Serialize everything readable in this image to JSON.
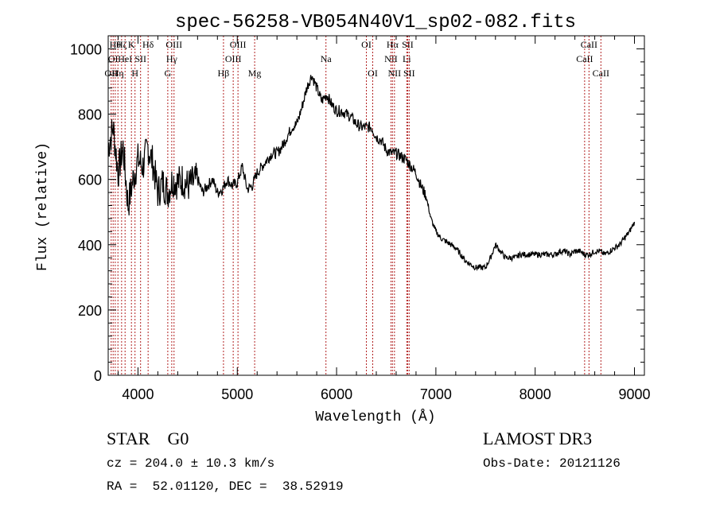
{
  "chart_data": {
    "type": "line",
    "title": "spec-56258-VB054N40V1_sp02-082.fits",
    "xlabel": "Wavelength (Å)",
    "ylabel": "Flux (relative)",
    "xlim": [
      3700,
      9100
    ],
    "ylim": [
      0,
      1040
    ],
    "xticks": [
      4000,
      5000,
      6000,
      7000,
      8000,
      9000
    ],
    "yticks": [
      0,
      200,
      400,
      600,
      800,
      1000
    ],
    "grid": false,
    "series": [
      {
        "name": "flux",
        "x": [
          3700,
          3750,
          3800,
          3850,
          3900,
          3950,
          4000,
          4050,
          4100,
          4150,
          4200,
          4250,
          4300,
          4350,
          4400,
          4450,
          4500,
          4550,
          4600,
          4650,
          4700,
          4750,
          4800,
          4850,
          4900,
          4950,
          5000,
          5050,
          5100,
          5150,
          5200,
          5250,
          5300,
          5350,
          5400,
          5450,
          5500,
          5550,
          5600,
          5650,
          5700,
          5750,
          5800,
          5850,
          5900,
          5950,
          6000,
          6050,
          6100,
          6150,
          6200,
          6250,
          6300,
          6350,
          6400,
          6450,
          6500,
          6550,
          6600,
          6650,
          6700,
          6750,
          6800,
          6850,
          6900,
          6950,
          7000,
          7050,
          7100,
          7150,
          7200,
          7250,
          7300,
          7350,
          7400,
          7450,
          7500,
          7550,
          7600,
          7650,
          7700,
          7750,
          7800,
          7850,
          7900,
          7950,
          8000,
          8050,
          8100,
          8150,
          8200,
          8250,
          8300,
          8350,
          8400,
          8450,
          8500,
          8550,
          8600,
          8650,
          8700,
          8750,
          8800,
          8850,
          8900,
          8950,
          9000
        ],
        "y": [
          700,
          760,
          620,
          700,
          520,
          600,
          660,
          640,
          700,
          650,
          560,
          590,
          560,
          600,
          590,
          600,
          580,
          590,
          600,
          560,
          580,
          600,
          560,
          570,
          600,
          580,
          590,
          640,
          570,
          580,
          620,
          640,
          660,
          680,
          680,
          700,
          730,
          760,
          770,
          820,
          880,
          920,
          880,
          840,
          860,
          830,
          810,
          810,
          800,
          790,
          770,
          760,
          760,
          760,
          730,
          720,
          690,
          680,
          680,
          670,
          660,
          640,
          620,
          580,
          550,
          480,
          440,
          420,
          410,
          400,
          390,
          370,
          350,
          340,
          330,
          330,
          330,
          360,
          400,
          380,
          360,
          360,
          360,
          370,
          370,
          370,
          370,
          370,
          370,
          370,
          370,
          380,
          380,
          370,
          380,
          380,
          370,
          370,
          380,
          380,
          370,
          380,
          390,
          400,
          420,
          440,
          470
        ]
      }
    ],
    "line_markers": [
      {
        "w": 3730,
        "labels": [
          "OII"
        ],
        "row": 3
      },
      {
        "w": 3750,
        "labels": [
          "OI"
        ],
        "row": 2
      },
      {
        "w": 3771,
        "labels": [
          "Hθ"
        ],
        "row": 1
      },
      {
        "w": 3798,
        "labels": [
          "Hη"
        ],
        "row": 3
      },
      {
        "w": 3835,
        "labels": [
          "Hζ"
        ],
        "row": 1
      },
      {
        "w": 3870,
        "labels": [
          "HeI"
        ],
        "row": 2
      },
      {
        "w": 3934,
        "labels": [
          "K"
        ],
        "row": 1
      },
      {
        "w": 3970,
        "labels": [
          "H"
        ],
        "row": 3
      },
      {
        "w": 4026,
        "labels": [
          "SII"
        ],
        "row": 2
      },
      {
        "w": 4102,
        "labels": [
          "Hδ"
        ],
        "row": 1
      },
      {
        "w": 4300,
        "labels": [
          "G"
        ],
        "row": 3
      },
      {
        "w": 4340,
        "labels": [
          "Hγ"
        ],
        "row": 2
      },
      {
        "w": 4363,
        "labels": [
          "OIII"
        ],
        "row": 1
      },
      {
        "w": 4861,
        "labels": [
          "Hβ"
        ],
        "row": 3
      },
      {
        "w": 4959,
        "labels": [
          "OIII"
        ],
        "row": 2
      },
      {
        "w": 5007,
        "labels": [
          "OIII"
        ],
        "row": 1
      },
      {
        "w": 5175,
        "labels": [
          "Mg"
        ],
        "row": 3
      },
      {
        "w": 5893,
        "labels": [
          "Na"
        ],
        "row": 2
      },
      {
        "w": 6300,
        "labels": [
          "OI"
        ],
        "row": 1
      },
      {
        "w": 6364,
        "labels": [
          "OI"
        ],
        "row": 3
      },
      {
        "w": 6548,
        "labels": [
          "NII"
        ],
        "row": 2
      },
      {
        "w": 6563,
        "labels": [
          "Hα"
        ],
        "row": 1
      },
      {
        "w": 6583,
        "labels": [
          "NII"
        ],
        "row": 3
      },
      {
        "w": 6707,
        "labels": [
          "Li"
        ],
        "row": 2
      },
      {
        "w": 6716,
        "labels": [
          "SII"
        ],
        "row": 1
      },
      {
        "w": 6731,
        "labels": [
          "SII"
        ],
        "row": 3
      },
      {
        "w": 8498,
        "labels": [
          "CaII"
        ],
        "row": 2
      },
      {
        "w": 8542,
        "labels": [
          "CaII"
        ],
        "row": 1
      },
      {
        "w": 8662,
        "labels": [
          "CaII"
        ],
        "row": 3
      }
    ]
  },
  "info": {
    "class_line": "STAR    G0",
    "cz_line": "cz = 204.0 ± 10.3 km/s",
    "radec_line": "RA =  52.01120, DEC =  38.52919",
    "survey": "LAMOST DR3",
    "obs_date": "Obs-Date: 20121126"
  },
  "colors": {
    "axis": "#000000",
    "spectrum": "#000000",
    "marker": "#b22222"
  }
}
